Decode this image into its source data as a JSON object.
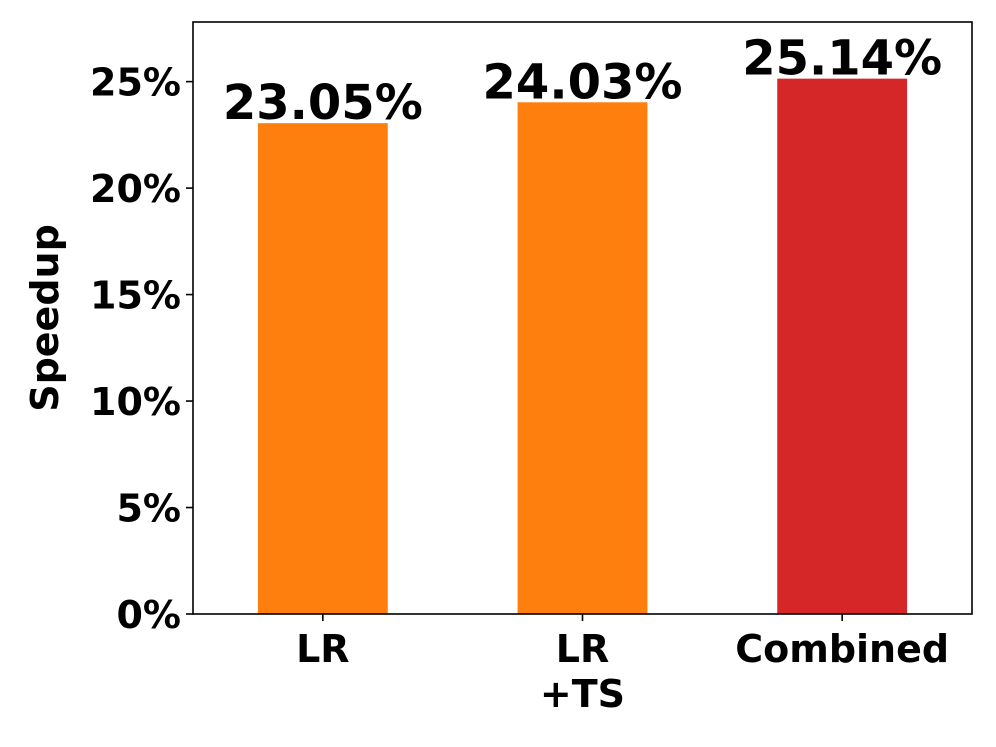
{
  "chart_data": {
    "type": "bar",
    "title": "",
    "xlabel": "",
    "ylabel": "Speedup",
    "ylim": [
      0,
      27.8
    ],
    "yticks": [
      0,
      5,
      10,
      15,
      20,
      25
    ],
    "ytick_labels": [
      "0%",
      "5%",
      "10%",
      "15%",
      "20%",
      "25%"
    ],
    "categories": [
      [
        "LR"
      ],
      [
        "LR",
        "+TS"
      ],
      [
        "Combined"
      ]
    ],
    "values": [
      23.05,
      24.03,
      25.14
    ],
    "data_labels": [
      "23.05%",
      "24.03%",
      "25.14%"
    ],
    "colors": [
      "#ff7f0e",
      "#ff7f0e",
      "#d62728"
    ],
    "grid": false,
    "legend": "none"
  }
}
